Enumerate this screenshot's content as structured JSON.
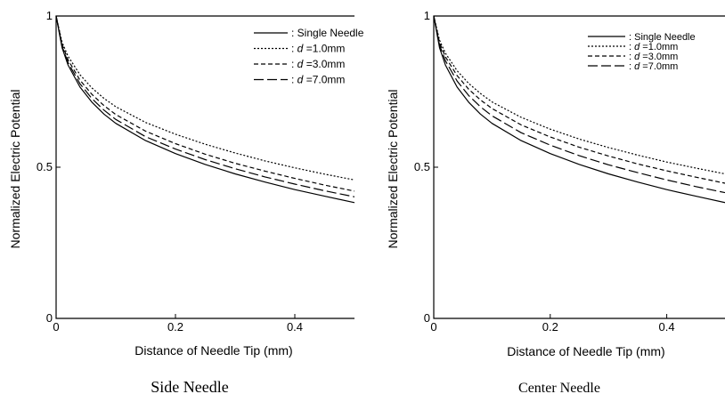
{
  "chart_data": [
    {
      "type": "line",
      "caption": "Side Needle",
      "xlabel": "Distance of Needle Tip (mm)",
      "ylabel": "Normalized Electric Potential",
      "xlim": [
        0,
        0.5
      ],
      "ylim": [
        0,
        1
      ],
      "x_ticks": [
        0,
        0.2,
        0.4
      ],
      "x_tick_labels": [
        "0",
        "0.2",
        "0.4"
      ],
      "y_ticks": [
        0,
        0.5,
        1
      ],
      "y_tick_labels": [
        "0",
        "0.5",
        "1"
      ],
      "grid": false,
      "legend_position": "top-right",
      "x": [
        0,
        0.01,
        0.02,
        0.04,
        0.06,
        0.08,
        0.1,
        0.15,
        0.2,
        0.25,
        0.3,
        0.35,
        0.4,
        0.45,
        0.5
      ],
      "series": [
        {
          "name": "Single Needle",
          "legend_prefix": ": ",
          "legend_suffix": "",
          "style": "solid",
          "values": [
            1.0,
            0.895,
            0.838,
            0.765,
            0.715,
            0.676,
            0.645,
            0.588,
            0.545,
            0.509,
            0.478,
            0.451,
            0.426,
            0.404,
            0.383
          ]
        },
        {
          "name": "d",
          "legend_prefix": ": ",
          "legend_suffix": " =1.0mm",
          "style": "dotted",
          "values": [
            1.0,
            0.913,
            0.867,
            0.806,
            0.762,
            0.728,
            0.7,
            0.648,
            0.609,
            0.576,
            0.547,
            0.521,
            0.498,
            0.477,
            0.458
          ]
        },
        {
          "name": "d",
          "legend_prefix": ": ",
          "legend_suffix": " =3.0mm",
          "style": "dashed",
          "values": [
            1.0,
            0.906,
            0.855,
            0.788,
            0.741,
            0.704,
            0.674,
            0.619,
            0.578,
            0.543,
            0.513,
            0.487,
            0.463,
            0.441,
            0.421
          ]
        },
        {
          "name": "d",
          "legend_prefix": ": ",
          "legend_suffix": " =7.0mm",
          "style": "longdash",
          "values": [
            1.0,
            0.9,
            0.846,
            0.776,
            0.727,
            0.689,
            0.658,
            0.601,
            0.56,
            0.525,
            0.495,
            0.468,
            0.444,
            0.422,
            0.402
          ]
        }
      ]
    },
    {
      "type": "line",
      "caption": "Center Needle",
      "xlabel": "Distance of Needle Tip (mm)",
      "ylabel": "Normalized Electric Potential",
      "xlim": [
        0,
        0.5
      ],
      "ylim": [
        0,
        1
      ],
      "x_ticks": [
        0,
        0.2,
        0.4
      ],
      "x_tick_labels": [
        "0",
        "0.2",
        "0.4"
      ],
      "y_ticks": [
        0,
        0.5,
        1
      ],
      "y_tick_labels": [
        "0",
        "0.5",
        "1"
      ],
      "grid": false,
      "legend_position": "top-right",
      "x": [
        0,
        0.01,
        0.02,
        0.04,
        0.06,
        0.08,
        0.1,
        0.15,
        0.2,
        0.25,
        0.3,
        0.35,
        0.4,
        0.45,
        0.5
      ],
      "series": [
        {
          "name": "Single Needle",
          "legend_prefix": ": ",
          "legend_suffix": "",
          "style": "solid",
          "values": [
            1.0,
            0.895,
            0.838,
            0.765,
            0.715,
            0.676,
            0.645,
            0.588,
            0.545,
            0.509,
            0.478,
            0.451,
            0.426,
            0.404,
            0.383
          ]
        },
        {
          "name": "d",
          "legend_prefix": ": ",
          "legend_suffix": " =1.0mm",
          "style": "dotted",
          "values": [
            1.0,
            0.92,
            0.877,
            0.819,
            0.777,
            0.744,
            0.716,
            0.665,
            0.626,
            0.593,
            0.565,
            0.54,
            0.517,
            0.497,
            0.478
          ]
        },
        {
          "name": "d",
          "legend_prefix": ": ",
          "legend_suffix": " =3.0mm",
          "style": "dashed",
          "values": [
            1.0,
            0.912,
            0.865,
            0.803,
            0.758,
            0.723,
            0.694,
            0.64,
            0.6,
            0.566,
            0.537,
            0.511,
            0.488,
            0.467,
            0.447
          ]
        },
        {
          "name": "d",
          "legend_prefix": ": ",
          "legend_suffix": " =7.0mm",
          "style": "longdash",
          "values": [
            1.0,
            0.904,
            0.852,
            0.785,
            0.737,
            0.7,
            0.67,
            0.614,
            0.573,
            0.538,
            0.508,
            0.482,
            0.458,
            0.436,
            0.416
          ]
        }
      ]
    }
  ]
}
